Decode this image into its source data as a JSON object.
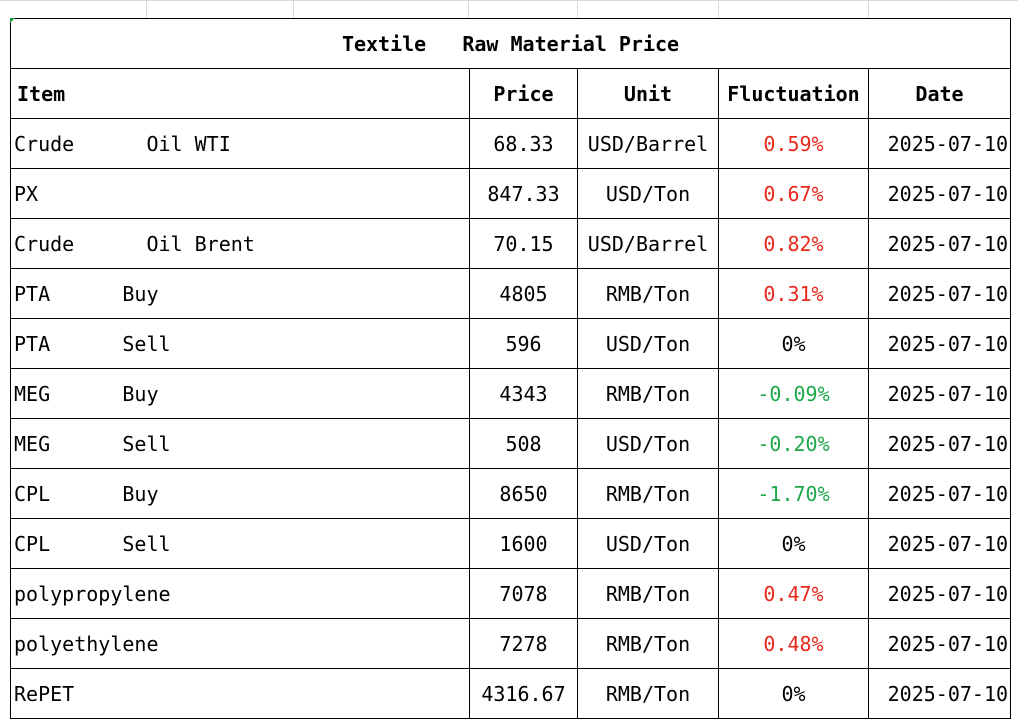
{
  "table": {
    "title": "Textile   Raw Material Price",
    "headers": {
      "item": "Item",
      "price": "Price",
      "unit": "Unit",
      "fluctuation": "Fluctuation",
      "date": "Date"
    },
    "rows": [
      {
        "item": "Crude      Oil WTI",
        "price": "68.33",
        "unit": "USD/Barrel",
        "fluctuation": "0.59%",
        "trend": "up",
        "date": "2025-07-10"
      },
      {
        "item": "PX",
        "price": "847.33",
        "unit": "USD/Ton",
        "fluctuation": "0.67%",
        "trend": "up",
        "date": "2025-07-10"
      },
      {
        "item": "Crude      Oil Brent",
        "price": "70.15",
        "unit": "USD/Barrel",
        "fluctuation": "0.82%",
        "trend": "up",
        "date": "2025-07-10"
      },
      {
        "item": "PTA      Buy",
        "price": "4805",
        "unit": "RMB/Ton",
        "fluctuation": "0.31%",
        "trend": "up",
        "date": "2025-07-10"
      },
      {
        "item": "PTA      Sell",
        "price": "596",
        "unit": "USD/Ton",
        "fluctuation": "0%",
        "trend": "flat",
        "date": "2025-07-10"
      },
      {
        "item": "MEG      Buy",
        "price": "4343",
        "unit": "RMB/Ton",
        "fluctuation": "-0.09%",
        "trend": "down",
        "date": "2025-07-10"
      },
      {
        "item": "MEG      Sell",
        "price": "508",
        "unit": "USD/Ton",
        "fluctuation": "-0.20%",
        "trend": "down",
        "date": "2025-07-10"
      },
      {
        "item": "CPL      Buy",
        "price": "8650",
        "unit": "RMB/Ton",
        "fluctuation": "-1.70%",
        "trend": "down",
        "date": "2025-07-10"
      },
      {
        "item": "CPL      Sell",
        "price": "1600",
        "unit": "USD/Ton",
        "fluctuation": "0%",
        "trend": "flat",
        "date": "2025-07-10"
      },
      {
        "item": "polypropylene",
        "price": "7078",
        "unit": "RMB/Ton",
        "fluctuation": "0.47%",
        "trend": "up",
        "date": "2025-07-10"
      },
      {
        "item": "polyethylene",
        "price": "7278",
        "unit": "RMB/Ton",
        "fluctuation": "0.48%",
        "trend": "up",
        "date": "2025-07-10"
      },
      {
        "item": "RePET",
        "price": "4316.67",
        "unit": "RMB/Ton",
        "fluctuation": "0%",
        "trend": "flat",
        "date": "2025-07-10"
      }
    ]
  },
  "colors": {
    "up": "#e8291c",
    "down": "#1fa84a",
    "flat": "#000000",
    "border": "#000000"
  }
}
